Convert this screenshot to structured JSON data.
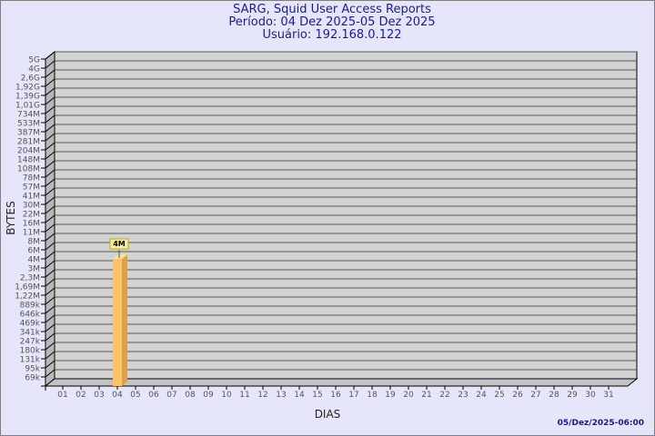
{
  "header": {
    "title": "SARG, Squid User Access Reports",
    "period": "Período: 04 Dez 2025-05 Dez 2025",
    "user": "Usuário: 192.168.0.122"
  },
  "footer": {
    "timestamp": "05/Dez/2025-06:00"
  },
  "chart_data": {
    "type": "bar",
    "title": "SARG, Squid User Access Reports",
    "xlabel": "DIAS",
    "ylabel": "BYTES",
    "y_scale": "log",
    "grid": true,
    "y_ticks": [
      "5G",
      "4G",
      "2,6G",
      "1,92G",
      "1,39G",
      "1,01G",
      "734M",
      "533M",
      "387M",
      "281M",
      "204M",
      "148M",
      "108M",
      "78M",
      "57M",
      "41M",
      "30M",
      "22M",
      "16M",
      "11M",
      "8M",
      "6M",
      "4M",
      "3M",
      "2,3M",
      "1,69M",
      "1,22M",
      "889k",
      "646k",
      "469k",
      "341k",
      "247k",
      "180k",
      "131k",
      "95k",
      "69k"
    ],
    "categories": [
      "01",
      "02",
      "03",
      "04",
      "05",
      "06",
      "07",
      "08",
      "09",
      "10",
      "11",
      "12",
      "13",
      "14",
      "15",
      "16",
      "17",
      "18",
      "19",
      "20",
      "21",
      "22",
      "23",
      "24",
      "25",
      "26",
      "27",
      "28",
      "29",
      "30",
      "31"
    ],
    "bars": [
      {
        "category": "04",
        "value": 4000000,
        "label": "4M"
      }
    ],
    "colors": {
      "bar_front": "#ffc266",
      "bar_side": "#dba24a",
      "bar_top": "#ffe199",
      "plot_back": "#d3d3d3",
      "label_box": "#f5f0a0"
    }
  }
}
